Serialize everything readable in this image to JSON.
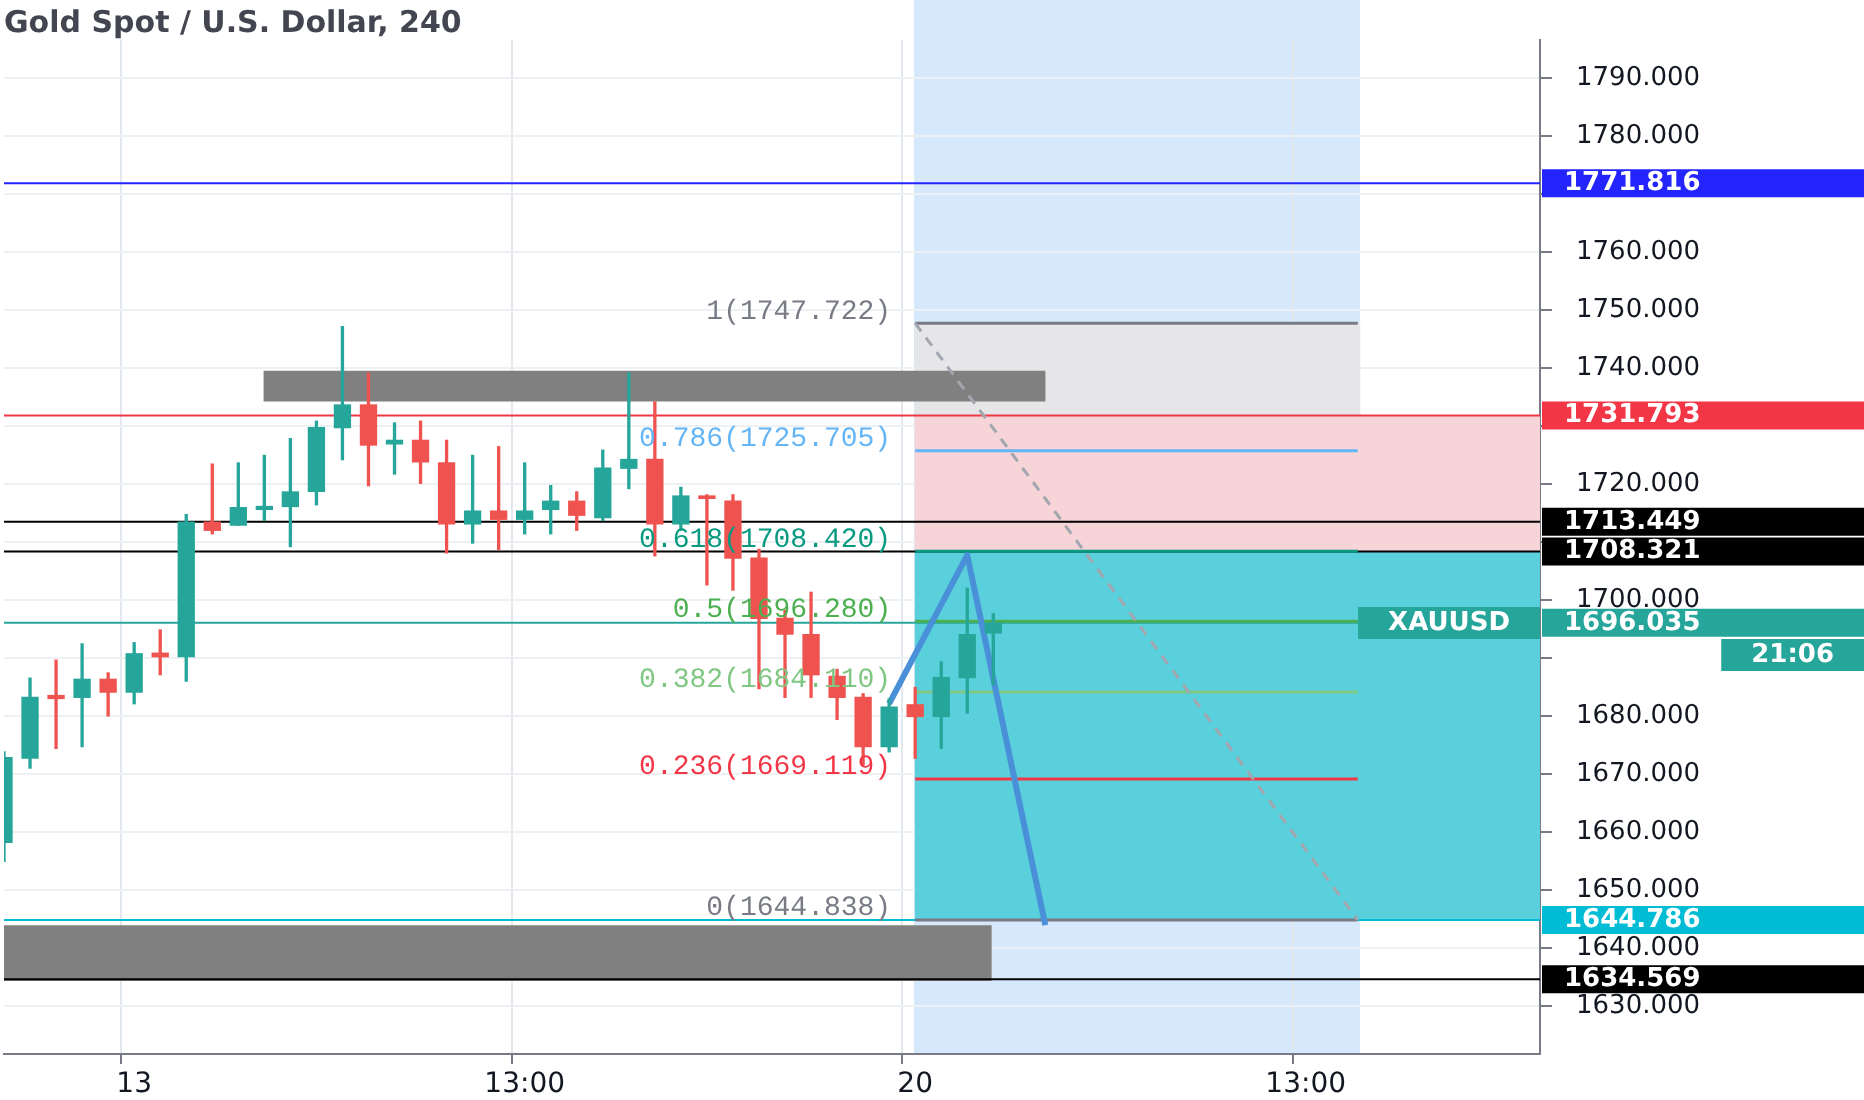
{
  "chart_data": {
    "type": "candlestick",
    "title": "Gold Spot / U.S. Dollar, 240",
    "categories": [
      null,
      null,
      null,
      null,
      null,
      "13",
      null,
      null,
      null,
      null,
      null,
      null,
      null,
      null,
      null,
      null,
      null,
      null,
      null,
      null,
      "13:00",
      null,
      null,
      null,
      null,
      null,
      null,
      null,
      null,
      null,
      null,
      null,
      null,
      null,
      null,
      "20",
      null,
      null,
      null,
      null,
      null,
      null,
      null,
      null,
      null,
      null,
      null,
      null,
      null,
      null,
      "13:00",
      null,
      null,
      null,
      null,
      null,
      null,
      null,
      null,
      null
    ],
    "ohlc": [
      [
        1658.2,
        1673.8,
        1654.9,
        1672.8
      ],
      [
        1672.7,
        1686.5,
        1671.0,
        1683.2
      ],
      [
        1683.5,
        1689.6,
        1674.4,
        1683.0
      ],
      [
        1683.2,
        1692.4,
        1674.7,
        1686.3
      ],
      [
        1686.3,
        1687.4,
        1680.0,
        1684.1
      ],
      [
        1684.1,
        1692.6,
        1682.1,
        1690.7
      ],
      [
        1690.8,
        1694.8,
        1687.1,
        1690.2
      ],
      [
        1690.2,
        1714.7,
        1686.0,
        1713.4
      ],
      [
        1713.4,
        1723.4,
        1711.4,
        1712.0
      ],
      [
        1712.9,
        1723.6,
        1712.9,
        1715.9
      ],
      [
        1715.6,
        1724.9,
        1713.7,
        1716.1
      ],
      [
        1716.1,
        1727.8,
        1709.2,
        1718.6
      ],
      [
        1718.7,
        1730.8,
        1716.4,
        1729.7
      ],
      [
        1729.7,
        1747.1,
        1724.2,
        1733.6
      ],
      [
        1733.6,
        1739.1,
        1719.7,
        1726.7
      ],
      [
        1726.9,
        1730.5,
        1721.7,
        1727.5
      ],
      [
        1727.5,
        1730.8,
        1720.1,
        1723.8
      ],
      [
        1723.6,
        1727.5,
        1708.1,
        1713.1
      ],
      [
        1713.1,
        1724.9,
        1709.8,
        1715.3
      ],
      [
        1715.3,
        1726.4,
        1708.7,
        1713.9
      ],
      [
        1713.9,
        1723.6,
        1711.4,
        1715.3
      ],
      [
        1715.6,
        1719.7,
        1711.4,
        1717.0
      ],
      [
        1717.0,
        1718.6,
        1712.0,
        1714.6
      ],
      [
        1714.2,
        1725.8,
        1713.7,
        1722.7
      ],
      [
        1722.7,
        1739.1,
        1719.2,
        1724.2
      ],
      [
        1724.2,
        1734.1,
        1707.6,
        1713.1
      ],
      [
        1713.1,
        1719.4,
        1712.0,
        1717.9
      ],
      [
        1717.9,
        1718.1,
        1702.6,
        1717.5
      ],
      [
        1717.0,
        1718.1,
        1701.7,
        1707.2
      ],
      [
        1707.2,
        1708.7,
        1684.7,
        1696.8
      ],
      [
        1696.8,
        1698.2,
        1683.2,
        1694.1
      ],
      [
        1694.0,
        1701.3,
        1683.2,
        1687.1
      ],
      [
        1686.8,
        1688.0,
        1679.4,
        1683.2
      ],
      [
        1683.2,
        1683.8,
        1671.6,
        1674.7
      ],
      [
        1674.7,
        1682.9,
        1673.8,
        1681.5
      ],
      [
        1681.9,
        1684.9,
        1672.7,
        1679.9
      ],
      [
        1679.9,
        1689.3,
        1674.4,
        1686.6
      ],
      [
        1686.6,
        1702.0,
        1680.5,
        1694.0
      ],
      [
        1694.3,
        1697.6,
        1685.4,
        1696.0
      ],
      null,
      null,
      null,
      null,
      null,
      null,
      null,
      null,
      null,
      null,
      null,
      null,
      null,
      null,
      null,
      null,
      null,
      null,
      null,
      null,
      null
    ],
    "colors": [
      "#26a69a",
      "#26a69a",
      "#ef5350",
      "#26a69a",
      "#ef5350",
      "#26a69a",
      "#ef5350",
      "#26a69a",
      "#ef5350",
      "#26a69a",
      "#26a69a",
      "#26a69a",
      "#26a69a",
      "#26a69a",
      "#ef5350",
      "#26a69a",
      "#ef5350",
      "#ef5350",
      "#26a69a",
      "#ef5350",
      "#26a69a",
      "#26a69a",
      "#ef5350",
      "#26a69a",
      "#26a69a",
      "#ef5350",
      "#26a69a",
      "#ef5350",
      "#ef5350",
      "#ef5350",
      "#ef5350",
      "#ef5350",
      "#ef5350",
      "#ef5350",
      "#26a69a",
      "#ef5350",
      "#26a69a",
      "#26a69a",
      "#26a69a",
      null,
      null,
      null,
      null,
      null,
      null,
      null,
      null,
      null,
      null,
      null,
      null,
      null,
      null,
      null,
      null,
      null,
      null,
      null,
      null,
      null
    ],
    "series": [
      {
        "type": "line",
        "name": "1(1747.722)",
        "color": "#787b86",
        "values": [
          null,
          null,
          null,
          null,
          null,
          null,
          null,
          null,
          null,
          null,
          null,
          null,
          null,
          null,
          null,
          null,
          null,
          null,
          null,
          null,
          null,
          null,
          null,
          null,
          null,
          null,
          null,
          null,
          null,
          null,
          null,
          null,
          null,
          null,
          null,
          1747.7,
          1747.7,
          1747.7,
          1747.7,
          1747.7,
          1747.7,
          1747.7,
          1747.7,
          1747.7,
          1747.7,
          1747.7,
          1747.7,
          1747.7,
          1747.7,
          1747.7,
          1747.7,
          1747.7,
          1747.7,
          null,
          null,
          null,
          null,
          null,
          null,
          null
        ]
      },
      {
        "type": "line",
        "name": "0.786(1725.705)",
        "color": "#64b5f6",
        "values": [
          null,
          null,
          null,
          null,
          null,
          null,
          null,
          null,
          null,
          null,
          null,
          null,
          null,
          null,
          null,
          null,
          null,
          null,
          null,
          null,
          null,
          null,
          null,
          null,
          null,
          null,
          null,
          null,
          null,
          null,
          null,
          null,
          null,
          null,
          null,
          1725.7,
          1725.7,
          1725.7,
          1725.7,
          1725.7,
          1725.7,
          1725.7,
          1725.7,
          1725.7,
          1725.7,
          1725.7,
          1725.7,
          1725.7,
          1725.7,
          1725.7,
          1725.7,
          1725.7,
          1725.7,
          null,
          null,
          null,
          null,
          null,
          null,
          null
        ]
      },
      {
        "type": "line",
        "name": "0.618(1708.420)",
        "color": "#089981",
        "values": [
          null,
          null,
          null,
          null,
          null,
          null,
          null,
          null,
          null,
          null,
          null,
          null,
          null,
          null,
          null,
          null,
          null,
          null,
          null,
          null,
          null,
          null,
          null,
          null,
          null,
          null,
          null,
          null,
          null,
          null,
          null,
          null,
          null,
          null,
          null,
          1708.4,
          1708.4,
          1708.4,
          1708.4,
          1708.4,
          1708.4,
          1708.4,
          1708.4,
          1708.4,
          1708.4,
          1708.4,
          1708.4,
          1708.4,
          1708.4,
          1708.4,
          1708.4,
          1708.4,
          1708.4,
          null,
          null,
          null,
          null,
          null,
          null,
          null
        ]
      },
      {
        "type": "line",
        "name": "0.5(1696.280)",
        "color": "#4caf50",
        "values": [
          null,
          null,
          null,
          null,
          null,
          null,
          null,
          null,
          null,
          null,
          null,
          null,
          null,
          null,
          null,
          null,
          null,
          null,
          null,
          null,
          null,
          null,
          null,
          null,
          null,
          null,
          null,
          null,
          null,
          null,
          null,
          null,
          null,
          null,
          null,
          1696.3,
          1696.3,
          1696.3,
          1696.3,
          1696.3,
          1696.3,
          1696.3,
          1696.3,
          1696.3,
          1696.3,
          1696.3,
          1696.3,
          1696.3,
          1696.3,
          1696.3,
          1696.3,
          1696.3,
          1696.3,
          null,
          null,
          null,
          null,
          null,
          null,
          null
        ]
      },
      {
        "type": "line",
        "name": "0.382(1684.110)",
        "color": "#81c784",
        "values": [
          null,
          null,
          null,
          null,
          null,
          null,
          null,
          null,
          null,
          null,
          null,
          null,
          null,
          null,
          null,
          null,
          null,
          null,
          null,
          null,
          null,
          null,
          null,
          null,
          null,
          null,
          null,
          null,
          null,
          null,
          null,
          null,
          null,
          null,
          null,
          1684.1,
          null,
          1684.1,
          1684.1,
          1684.1,
          1684.1,
          1684.1,
          1684.1,
          1684.1,
          1684.1,
          1684.1,
          1684.1,
          1684.1,
          1684.1,
          1684.1,
          1684.1,
          1684.1,
          1684.1,
          null,
          null,
          null,
          null,
          null,
          null,
          null
        ]
      },
      {
        "type": "line",
        "name": "0.236(1669.119)",
        "color": "#f23645",
        "values": [
          null,
          null,
          null,
          null,
          null,
          null,
          null,
          null,
          null,
          null,
          null,
          null,
          null,
          null,
          null,
          null,
          null,
          null,
          null,
          null,
          null,
          null,
          null,
          null,
          null,
          null,
          null,
          null,
          null,
          null,
          null,
          null,
          null,
          null,
          null,
          1669.1,
          1669.1,
          1669.1,
          1669.1,
          1669.1,
          1669.1,
          1669.1,
          1669.1,
          1669.1,
          1669.1,
          1669.1,
          1669.1,
          1669.1,
          1669.1,
          1669.1,
          1669.1,
          1669.1,
          1669.1,
          null,
          null,
          null,
          null,
          null,
          null,
          null
        ]
      },
      {
        "type": "line",
        "name": "0(1644.838)",
        "color": "#787b86",
        "values": [
          null,
          null,
          null,
          null,
          null,
          null,
          null,
          null,
          null,
          null,
          null,
          null,
          null,
          null,
          null,
          null,
          null,
          null,
          null,
          null,
          null,
          null,
          null,
          null,
          null,
          null,
          null,
          null,
          null,
          null,
          null,
          null,
          null,
          null,
          null,
          1644.8,
          1644.8,
          1644.8,
          1644.8,
          1644.8,
          1644.8,
          1644.8,
          1644.8,
          1644.8,
          1644.8,
          1644.8,
          1644.8,
          1644.8,
          1644.8,
          1644.8,
          1644.8,
          1644.8,
          1644.8,
          null,
          null,
          null,
          null,
          null,
          null,
          null
        ]
      },
      {
        "type": "line",
        "color": "#a3a6af",
        "line_style": "dashed",
        "values": [
          null,
          null,
          null,
          null,
          null,
          null,
          null,
          null,
          null,
          null,
          null,
          null,
          null,
          null,
          null,
          null,
          null,
          null,
          null,
          null,
          null,
          null,
          null,
          null,
          null,
          null,
          null,
          null,
          null,
          null,
          null,
          null,
          null,
          null,
          null,
          1747.7,
          null,
          null,
          null,
          null,
          null,
          null,
          null,
          null,
          null,
          null,
          null,
          null,
          null,
          null,
          null,
          null,
          1644.8,
          null,
          null,
          null,
          null,
          null,
          null,
          null
        ]
      },
      {
        "type": "line",
        "color": "#4a90d9",
        "values": [
          null,
          null,
          null,
          null,
          null,
          null,
          null,
          null,
          null,
          null,
          null,
          null,
          null,
          null,
          null,
          null,
          null,
          null,
          null,
          null,
          null,
          null,
          null,
          null,
          null,
          null,
          null,
          null,
          null,
          null,
          null,
          null,
          null,
          null,
          1682.1,
          null,
          null,
          1707.7,
          null,
          null,
          1643.9,
          null,
          null,
          null,
          null,
          null,
          null,
          null,
          null,
          null,
          null,
          null,
          null,
          null,
          null,
          null,
          null,
          null,
          null,
          null
        ]
      }
    ],
    "bands": [
      {
        "axis": "y",
        "from": 1725.7,
        "to": 1747.7,
        "color": "#e6e6e8"
      },
      {
        "axis": "y",
        "from": 1708.3,
        "to": 1731.8,
        "color": "#f6d4d7"
      },
      {
        "axis": "y",
        "from": 1644.8,
        "to": 1708.3,
        "color": "#5ad0dc"
      },
      {
        "axis": "y",
        "from": 1734.2,
        "to": 1739.5,
        "color": "#808080"
      },
      {
        "axis": "y",
        "from": 1634.3,
        "to": 1643.9,
        "color": "#808080"
      }
    ],
    "ylim": [
      1621.7,
      1796.6
    ],
    "yticks": [
      {
        "value": 1630,
        "label": "1630.000"
      },
      {
        "value": 1640,
        "label": "1640.000"
      },
      {
        "value": 1650,
        "label": "1650.000"
      },
      {
        "value": 1660,
        "label": "1660.000"
      },
      {
        "value": 1670,
        "label": "1670.000"
      },
      {
        "value": 1680,
        "label": "1680.000"
      },
      {
        "value": 1690,
        "label": null
      },
      {
        "value": 1700,
        "label": "1700.000"
      },
      {
        "value": 1710,
        "label": null
      },
      {
        "value": 1720,
        "label": "1720.000"
      },
      {
        "value": 1730,
        "label": null
      },
      {
        "value": 1740,
        "label": "1740.000"
      },
      {
        "value": 1750,
        "label": "1750.000"
      },
      {
        "value": 1760,
        "label": "1760.000"
      },
      {
        "value": 1770,
        "label": null
      },
      {
        "value": 1780,
        "label": "1780.000"
      },
      {
        "value": 1790,
        "label": "1790.000"
      }
    ],
    "ref_lines": [
      {
        "axis": "y",
        "value": 1771.816,
        "label": "1771.816",
        "color": "#2424ff"
      },
      {
        "axis": "y",
        "value": 1731.793,
        "label": "1731.793",
        "color": "#f23645"
      },
      {
        "axis": "y",
        "value": 1713.449,
        "label": "1713.449",
        "color": "#000000"
      },
      {
        "axis": "y",
        "value": 1708.321,
        "label": "1708.321",
        "color": "#000000"
      },
      {
        "axis": "y",
        "value": 1696.035,
        "label": "1696.035",
        "color": "#26a69a"
      },
      {
        "axis": "y",
        "value": 1644.786,
        "label": "1644.786",
        "color": "#00bcd4"
      },
      {
        "axis": "y",
        "value": 1634.569,
        "label": "1634.569",
        "color": "#000000"
      }
    ],
    "annotations": [
      "XAUUSD",
      "21:06"
    ],
    "grid": true,
    "legend": false,
    "marker": "none"
  }
}
